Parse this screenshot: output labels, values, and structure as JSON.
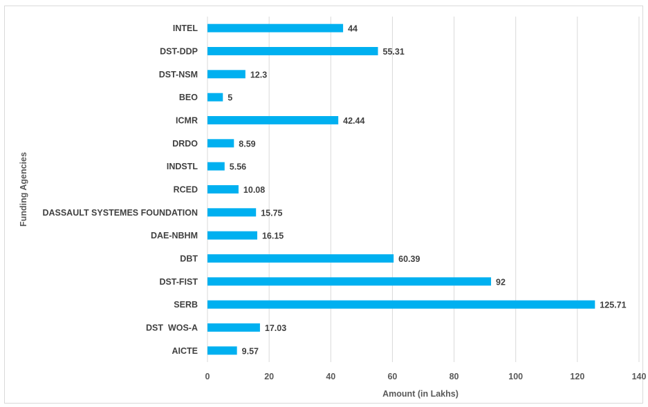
{
  "chart_data": {
    "type": "bar",
    "orientation": "horizontal",
    "title": "",
    "xlabel": "Amount (in Lakhs)",
    "ylabel": "Funding Agencies",
    "xlim": [
      0,
      140
    ],
    "xticks": [
      0,
      20,
      40,
      60,
      80,
      100,
      120,
      140
    ],
    "grid": true,
    "bar_color": "#00B0F0",
    "categories": [
      "INTEL",
      "DST-DDP",
      "DST-NSM",
      "BEO",
      "ICMR",
      "DRDO",
      "INDSTL",
      "RCED",
      "DASSAULT SYSTEMES FOUNDATION",
      "DAE-NBHM",
      "DBT",
      "DST-FIST",
      "SERB",
      "DST  WOS-A",
      "AICTE"
    ],
    "values": [
      44,
      55.31,
      12.3,
      5,
      42.44,
      8.59,
      5.56,
      10.08,
      15.75,
      16.15,
      60.39,
      92,
      125.71,
      17.03,
      9.57
    ],
    "value_labels": [
      "44",
      "55.31",
      "12.3",
      "5",
      "42.44",
      "8.59",
      "5.56",
      "10.08",
      "15.75",
      "16.15",
      "60.39",
      "92",
      "125.71",
      "17.03",
      "9.57"
    ]
  }
}
